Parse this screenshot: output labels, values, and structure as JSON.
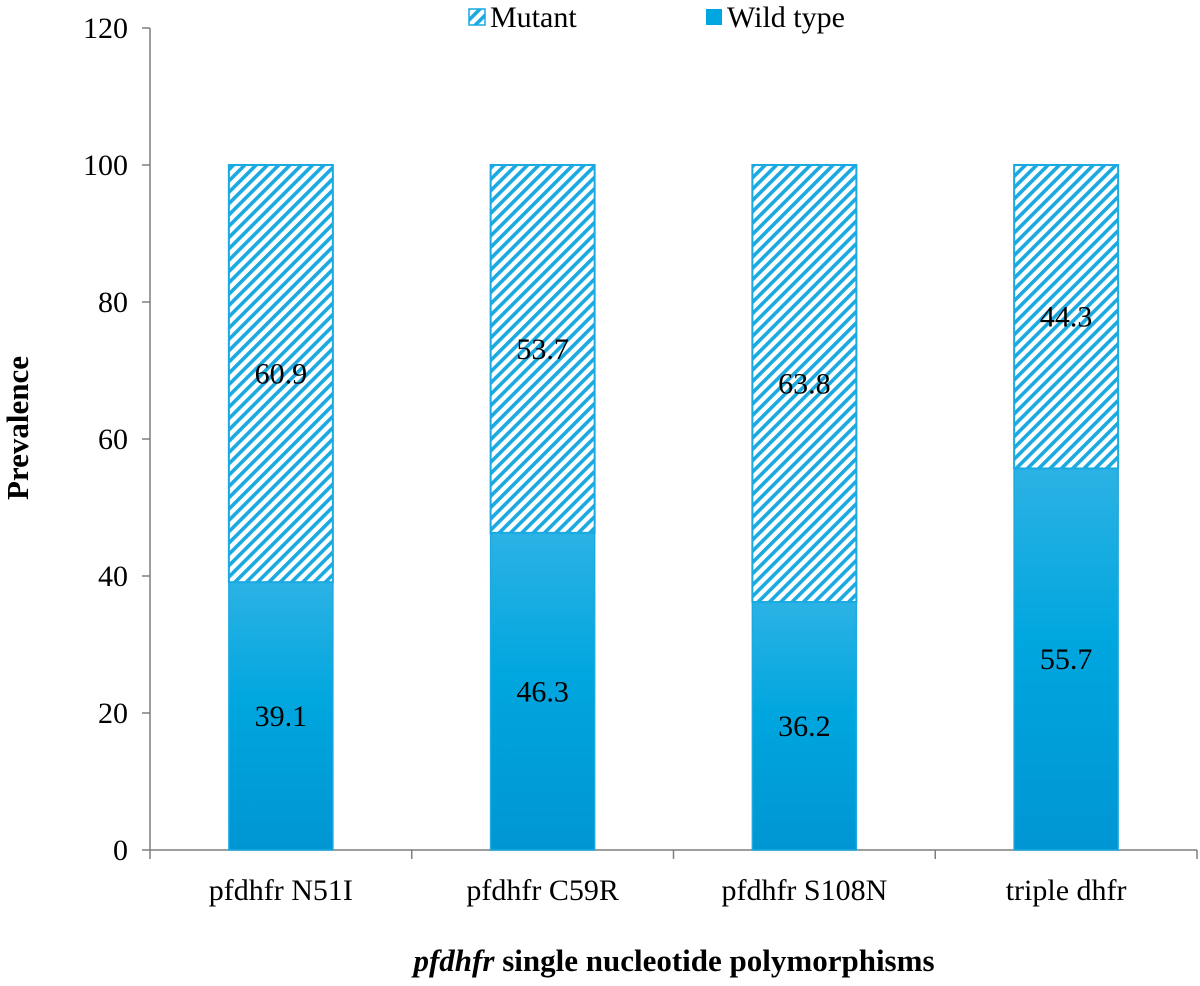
{
  "chart_data": {
    "type": "bar",
    "stacked": true,
    "categories": [
      "pfdhfr N51I",
      "pfdhfr C59R",
      "pfdhfr S108N",
      "triple dhfr"
    ],
    "series": [
      {
        "name": "Wild type",
        "values": [
          39.1,
          46.3,
          36.2,
          55.7
        ],
        "labels": [
          "39.1",
          "46.3",
          "36.2",
          "55.7"
        ],
        "fill": "solid",
        "color": "#00a6df"
      },
      {
        "name": "Mutant",
        "values": [
          60.9,
          53.7,
          63.8,
          44.3
        ],
        "labels": [
          "60.9",
          "53.7",
          "63.8",
          "44.3"
        ],
        "fill": "hatched",
        "color": "#1aa9e0"
      }
    ],
    "legend": {
      "position": "top-center",
      "order": [
        "Mutant",
        "Wild type"
      ]
    },
    "title": "",
    "ylabel": "Prevalence",
    "xlabel_italic": "pfdhfr",
    "xlabel_rest": " single nucleotide polymorphisms",
    "ylim": [
      0,
      120
    ],
    "yticks": [
      0,
      20,
      40,
      60,
      80,
      100,
      120
    ],
    "ytick_labels": [
      "0",
      "20",
      "40",
      "60",
      "80",
      "100",
      "120"
    ],
    "grid": false
  }
}
